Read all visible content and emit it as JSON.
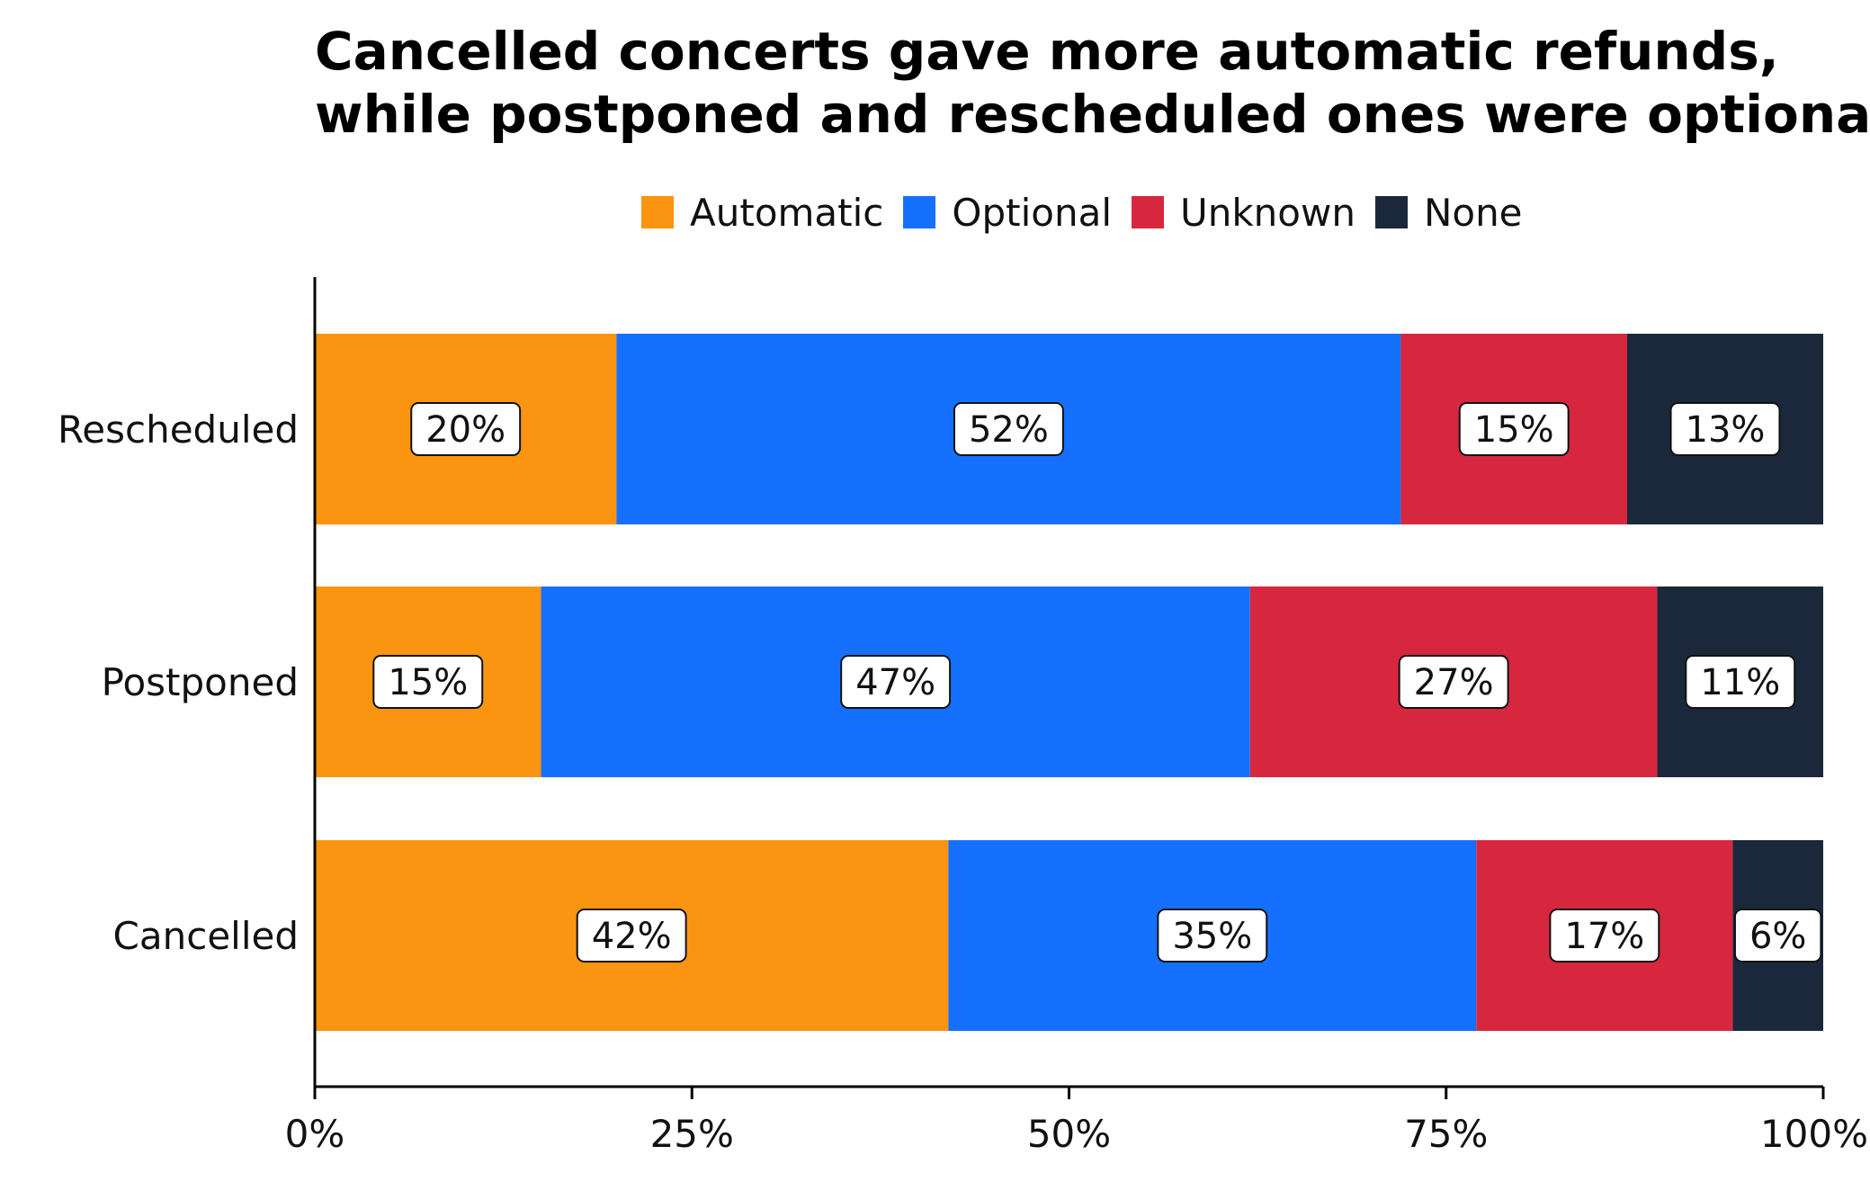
{
  "chart_data": {
    "type": "bar",
    "orientation": "horizontal",
    "stacked": true,
    "title_lines": [
      "Cancelled concerts gave more automatic refunds,",
      "while postponed and rescheduled ones were optional"
    ],
    "categories": [
      "Rescheduled",
      "Postponed",
      "Cancelled"
    ],
    "series": [
      {
        "name": "Automatic",
        "color": "#fb9410",
        "values": [
          20,
          15,
          42
        ]
      },
      {
        "name": "Optional",
        "color": "#1670fe",
        "values": [
          52,
          47,
          35
        ]
      },
      {
        "name": "Unknown",
        "color": "#d6273f",
        "values": [
          15,
          27,
          17
        ]
      },
      {
        "name": "None",
        "color": "#1b283b",
        "values": [
          13,
          11,
          6
        ]
      }
    ],
    "value_format": "{v}%",
    "xlim": [
      0,
      100
    ],
    "x_ticks": [
      0,
      25,
      50,
      75,
      100
    ],
    "x_tick_labels": [
      "0%",
      "25%",
      "50%",
      "75%",
      "100%"
    ],
    "xlabel": "",
    "ylabel": "",
    "legend_position": "top",
    "grid": false
  }
}
